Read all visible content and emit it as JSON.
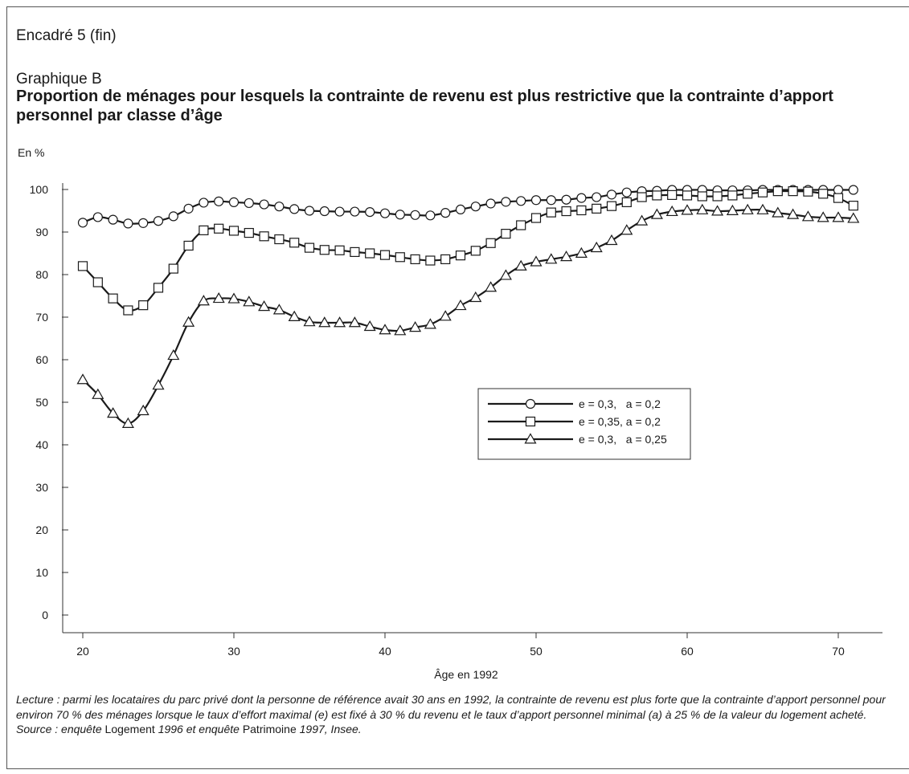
{
  "box_title": "Encadré 5 (fin)",
  "figure_number": "Graphique B",
  "figure_title": "Proportion de ménages pour lesquels la contrainte de revenu est plus restrictive que la contrainte d’apport personnel par classe d’âge",
  "unit_label": "En %",
  "notes": {
    "lecture": "Lecture : parmi les locataires du parc privé dont la personne de référence avait 30 ans en 1992, la contrainte de revenu est plus forte que la contrainte d’apport personnel pour environ 70 % des ménages lorsque le taux d’effort maximal (e) est fixé à 30 % du revenu et le taux d’apport personnel minimal (a) à 25 % de la valeur du logement acheté.",
    "source_1": "Source : enquête ",
    "source_2": "Logement",
    "source_3": " 1996 et enquête ",
    "source_4": "Patrimoine",
    "source_5": " 1997, Insee."
  },
  "chart_data": {
    "type": "line",
    "xlabel": "Âge en 1992",
    "ylabel": "En %",
    "xlim": [
      19,
      73
    ],
    "ylim": [
      -3,
      103
    ],
    "xticks": [
      20,
      30,
      40,
      50,
      60,
      70
    ],
    "yticks": [
      0,
      10,
      20,
      30,
      40,
      50,
      60,
      70,
      80,
      90,
      100
    ],
    "grid": false,
    "legend_position": "center-right",
    "line_color": "#1a1a1a",
    "x": [
      20,
      21,
      22,
      23,
      24,
      25,
      26,
      27,
      28,
      29,
      30,
      31,
      32,
      33,
      34,
      35,
      36,
      37,
      38,
      39,
      40,
      41,
      42,
      43,
      44,
      45,
      46,
      47,
      48,
      49,
      50,
      51,
      52,
      53,
      54,
      55,
      56,
      57,
      58,
      59,
      60,
      61,
      62,
      63,
      64,
      65,
      66,
      67,
      68,
      69,
      70,
      71
    ],
    "series": [
      {
        "name": "e = 0,3,   a = 0,2",
        "marker": "circle",
        "values": [
          92.2,
          93.5,
          92.9,
          92.0,
          92.1,
          92.6,
          93.7,
          95.5,
          96.9,
          97.2,
          97.0,
          96.8,
          96.5,
          96.0,
          95.4,
          95.0,
          94.9,
          94.8,
          94.8,
          94.7,
          94.4,
          94.1,
          94.0,
          93.9,
          94.5,
          95.3,
          96.0,
          96.7,
          97.1,
          97.3,
          97.5,
          97.5,
          97.6,
          98.0,
          98.2,
          98.8,
          99.3,
          99.6,
          99.7,
          99.9,
          99.9,
          99.9,
          99.8,
          99.8,
          99.8,
          99.9,
          99.9,
          99.9,
          99.9,
          99.9,
          99.9,
          99.9
        ]
      },
      {
        "name": "e = 0,35, a = 0,2",
        "marker": "square",
        "values": [
          82.0,
          78.2,
          74.4,
          71.6,
          72.8,
          76.9,
          81.4,
          86.8,
          90.4,
          90.8,
          90.3,
          89.8,
          89.0,
          88.3,
          87.5,
          86.3,
          85.8,
          85.7,
          85.3,
          85.0,
          84.6,
          84.1,
          83.6,
          83.3,
          83.6,
          84.5,
          85.6,
          87.4,
          89.6,
          91.6,
          93.3,
          94.6,
          94.9,
          95.1,
          95.5,
          96.1,
          97.0,
          98.2,
          98.6,
          98.7,
          98.6,
          98.4,
          98.4,
          98.6,
          99.0,
          99.3,
          99.6,
          99.6,
          99.5,
          99.0,
          98.0,
          96.2
        ]
      },
      {
        "name": "e = 0,3,   a = 0,25",
        "marker": "triangle",
        "values": [
          55.3,
          51.8,
          47.4,
          45.0,
          48.0,
          54.0,
          61.0,
          68.8,
          73.8,
          74.4,
          74.3,
          73.6,
          72.5,
          71.7,
          70.1,
          68.9,
          68.7,
          68.7,
          68.7,
          67.8,
          67.0,
          66.8,
          67.6,
          68.3,
          70.2,
          72.7,
          74.6,
          77.0,
          79.8,
          82.0,
          83.0,
          83.6,
          84.2,
          85.0,
          86.3,
          88.0,
          90.4,
          92.6,
          94.1,
          94.8,
          95.1,
          95.2,
          94.9,
          95.0,
          95.2,
          95.2,
          94.5,
          94.1,
          93.6,
          93.4,
          93.4,
          93.2
        ]
      }
    ]
  }
}
